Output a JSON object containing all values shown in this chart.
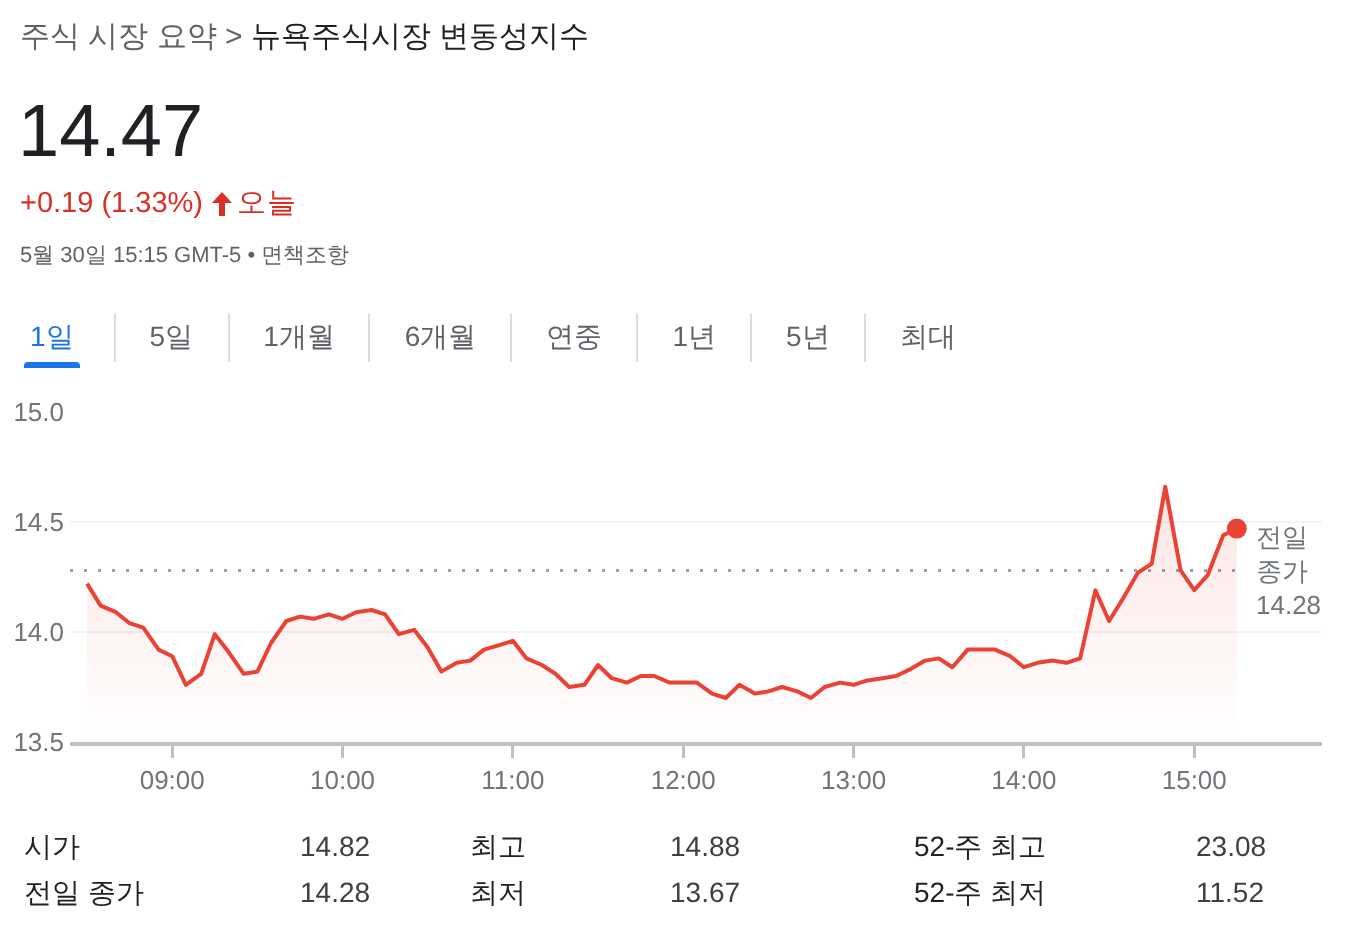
{
  "chart_data": {
    "type": "area",
    "title": "뉴욕주식시장 변동성지수",
    "subtitle": "14.47",
    "annotations": [
      "주식 시장 요약 >",
      "+0.19 (1.33%)",
      "오늘",
      "5월 30일 15:15 GMT-5 • 면책조항",
      "1일",
      "5일",
      "1개월",
      "6개월",
      "연중",
      "1년",
      "5년",
      "최대",
      "시가",
      "14.82",
      "최고",
      "14.88",
      "52-주 최고",
      "23.08",
      "전일 종가",
      "14.28",
      "최저",
      "13.67",
      "52-주 최저",
      "11.52"
    ],
    "x": [
      8.5,
      8.58,
      8.67,
      8.75,
      8.83,
      8.92,
      9,
      9.08,
      9.17,
      9.25,
      9.33,
      9.42,
      9.5,
      9.58,
      9.67,
      9.75,
      9.83,
      9.92,
      10,
      10.08,
      10.17,
      10.25,
      10.33,
      10.42,
      10.5,
      10.58,
      10.67,
      10.75,
      10.83,
      10.92,
      11,
      11.08,
      11.17,
      11.25,
      11.33,
      11.42,
      11.5,
      11.58,
      11.67,
      11.75,
      11.83,
      11.92,
      12,
      12.08,
      12.17,
      12.25,
      12.33,
      12.42,
      12.5,
      12.58,
      12.67,
      12.75,
      12.83,
      12.92,
      13,
      13.08,
      13.17,
      13.25,
      13.33,
      13.42,
      13.5,
      13.58,
      13.67,
      13.75,
      13.83,
      13.92,
      14,
      14.08,
      14.17,
      14.25,
      14.33,
      14.42,
      14.5,
      14.58,
      14.67,
      14.75,
      14.83,
      14.92,
      15,
      15.08,
      15.17,
      15.25
    ],
    "series": [
      {
        "color": "#ea4335",
        "values": [
          14.22,
          14.12,
          14.09,
          14.04,
          14.02,
          13.92,
          13.89,
          13.76,
          13.81,
          13.99,
          13.91,
          13.81,
          13.82,
          13.95,
          14.05,
          14.07,
          14.06,
          14.08,
          14.06,
          14.09,
          14.1,
          14.08,
          13.99,
          14.01,
          13.93,
          13.82,
          13.86,
          13.87,
          13.92,
          13.94,
          13.96,
          13.88,
          13.85,
          13.81,
          13.75,
          13.76,
          13.85,
          13.79,
          13.77,
          13.8,
          13.8,
          13.77,
          13.77,
          13.77,
          13.72,
          13.7,
          13.76,
          13.72,
          13.73,
          13.75,
          13.73,
          13.7,
          13.75,
          13.77,
          13.76,
          13.78,
          13.79,
          13.8,
          13.83,
          13.87,
          13.88,
          13.84,
          13.92,
          13.92,
          13.92,
          13.89,
          13.84,
          13.86,
          13.87,
          13.86,
          13.88,
          14.19,
          14.05,
          14.15,
          14.27,
          14.31,
          14.66,
          14.28,
          14.19,
          14.26,
          14.44,
          14.47
        ]
      },
      {
        "type": "scatter",
        "marker": "circle",
        "color": "#ea4335",
        "x": [
          15.25
        ],
        "values": [
          14.47
        ]
      }
    ],
    "xlim": [
      8.4,
      15.75
    ],
    "xticks": [
      {
        "value": 9,
        "label": "09:00"
      },
      {
        "value": 10,
        "label": "10:00"
      },
      {
        "value": 11,
        "label": "11:00"
      },
      {
        "value": 12,
        "label": "12:00"
      },
      {
        "value": 13,
        "label": "13:00"
      },
      {
        "value": 14,
        "label": "14:00"
      },
      {
        "value": 15,
        "label": "15:00"
      }
    ],
    "ylim": [
      13.5,
      15
    ],
    "yticks": [
      13.5,
      {
        "value": 14,
        "label": "14.0"
      },
      14.5,
      {
        "value": 15,
        "label": "15.0"
      }
    ],
    "grid": "y",
    "ref_lines": [
      {
        "axis": "y",
        "value": 14.28,
        "label": "전일 종가 14.28",
        "color": "#9aa0a6",
        "line_style": "dotted"
      }
    ]
  }
}
